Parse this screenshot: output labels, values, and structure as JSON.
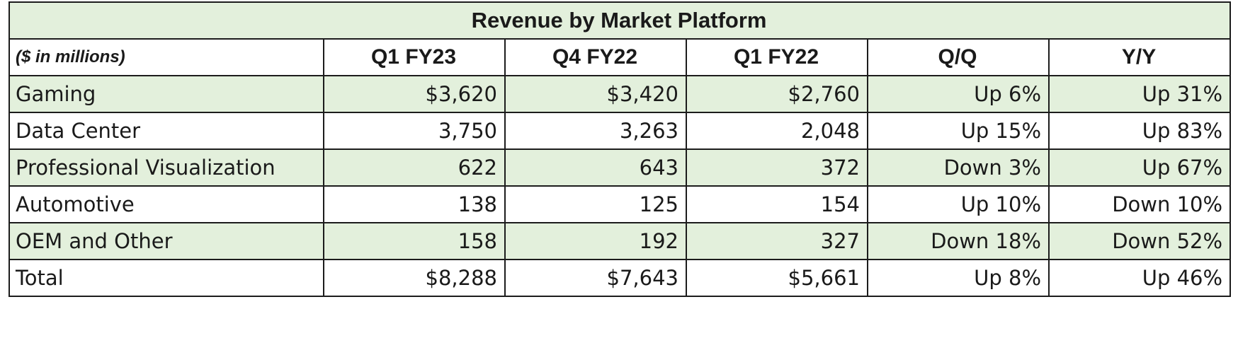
{
  "chart_data": {
    "type": "table",
    "title": "Revenue by Market Platform",
    "units_label": "($ in millions)",
    "columns": [
      "Q1 FY23",
      "Q4 FY22",
      "Q1 FY22",
      "Q/Q",
      "Y/Y"
    ],
    "rows": [
      {
        "label": "Gaming",
        "cells": [
          "$3,620",
          "$3,420",
          "$2,760",
          "Up 6%",
          "Up 31%"
        ]
      },
      {
        "label": "Data Center",
        "cells": [
          "3,750",
          "3,263",
          "2,048",
          "Up 15%",
          "Up 83%"
        ]
      },
      {
        "label": "Professional Visualization",
        "cells": [
          "622",
          "643",
          "372",
          "Down 3%",
          "Up 67%"
        ]
      },
      {
        "label": "Automotive",
        "cells": [
          "138",
          "125",
          "154",
          "Up 10%",
          "Down 10%"
        ]
      },
      {
        "label": "OEM and Other",
        "cells": [
          "158",
          "192",
          "327",
          "Down 18%",
          "Down 52%"
        ]
      },
      {
        "label": "Total",
        "cells": [
          "$8,288",
          "$7,643",
          "$5,661",
          "Up 8%",
          "Up 46%"
        ]
      }
    ],
    "colors": {
      "shade": "#e3f0dc",
      "border": "#1c1c1c"
    }
  }
}
